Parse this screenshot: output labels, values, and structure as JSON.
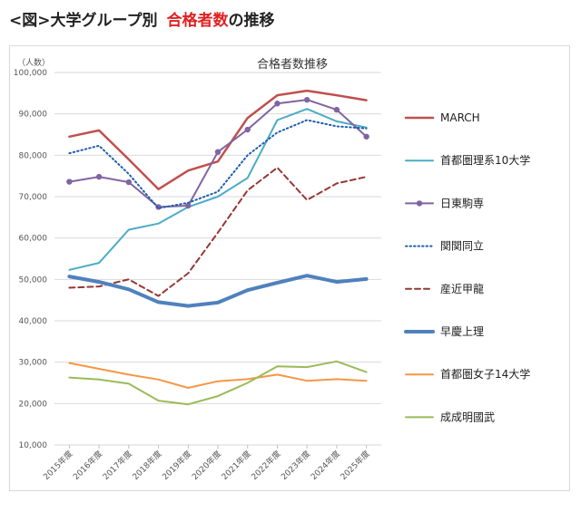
{
  "heading": {
    "prefix": "<図>",
    "black_text": "大学グループ別",
    "red_text": "合格者数",
    "suffix": "の推移",
    "accent_color": "#e02020"
  },
  "chart_data": {
    "type": "line",
    "title": "合格者数推移",
    "ylabel": "（人数）",
    "xlabel": "",
    "ylim": [
      10000,
      100000
    ],
    "yticks": [
      10000,
      20000,
      30000,
      40000,
      50000,
      60000,
      70000,
      80000,
      90000,
      100000
    ],
    "ytick_labels": [
      "10,000",
      "20,000",
      "30,000",
      "40,000",
      "50,000",
      "60,000",
      "70,000",
      "80,000",
      "90,000",
      "100,000"
    ],
    "grid": true,
    "legend_position": "right",
    "categories": [
      "2015年度",
      "2016年度",
      "2017年度",
      "2018年度",
      "2019年度",
      "2020年度",
      "2021年度",
      "2022年度",
      "2023年度",
      "2024年度",
      "2025年度"
    ],
    "series": [
      {
        "name": "MARCH",
        "color": "#c0504d",
        "style": "solid",
        "width": 2.5,
        "marker": false,
        "values": [
          84500,
          86000,
          79000,
          71800,
          76300,
          78500,
          89000,
          94500,
          95600,
          94500,
          93300
        ]
      },
      {
        "name": "首都圏理系10大学",
        "color": "#4bacc6",
        "style": "solid",
        "width": 2,
        "marker": false,
        "values": [
          52300,
          54000,
          62000,
          63500,
          67500,
          70000,
          74500,
          88500,
          91200,
          88200,
          86700
        ]
      },
      {
        "name": "日東駒専",
        "color": "#8064a2",
        "style": "solid",
        "width": 2,
        "marker": true,
        "values": [
          73600,
          74800,
          73500,
          67500,
          67800,
          80800,
          86200,
          92500,
          93400,
          91000,
          84500
        ]
      },
      {
        "name": "関関同立",
        "color": "#1f5fad",
        "style": "dotted",
        "width": 2,
        "marker": false,
        "values": [
          80500,
          82300,
          75500,
          67200,
          68500,
          71200,
          80000,
          85500,
          88500,
          87000,
          86500
        ]
      },
      {
        "name": "産近甲龍",
        "color": "#953735",
        "style": "dashed",
        "width": 2,
        "marker": false,
        "values": [
          48000,
          48300,
          50000,
          46000,
          51500,
          61300,
          71500,
          77000,
          69200,
          73200,
          74800
        ]
      },
      {
        "name": "早慶上理",
        "color": "#4f81bd",
        "style": "solid",
        "width": 4,
        "marker": false,
        "values": [
          50700,
          49400,
          47600,
          44500,
          43600,
          44400,
          47400,
          49200,
          50900,
          49400,
          50100
        ]
      },
      {
        "name": "首都圏女子14大学",
        "color": "#f79646",
        "style": "solid",
        "width": 2,
        "marker": false,
        "values": [
          29800,
          28400,
          27000,
          25800,
          23800,
          25400,
          25900,
          27000,
          25500,
          25900,
          25500
        ]
      },
      {
        "name": "成成明國武",
        "color": "#9bbb59",
        "style": "solid",
        "width": 2,
        "marker": false,
        "values": [
          26300,
          25800,
          24800,
          20700,
          19800,
          21800,
          25000,
          29000,
          28800,
          30200,
          27600
        ]
      }
    ]
  }
}
